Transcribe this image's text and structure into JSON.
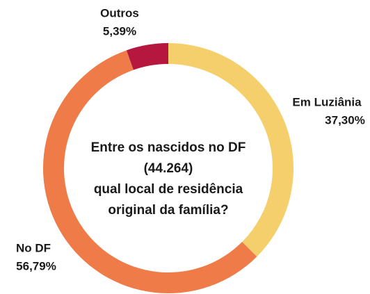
{
  "chart_data": {
    "type": "donut",
    "categories": [
      "Em Luziânia",
      "No DF",
      "Outros"
    ],
    "values": [
      37.3,
      56.79,
      5.39
    ],
    "value_labels": [
      "37,30%",
      "56,79%",
      "5,39%"
    ],
    "colors": [
      "#f4cf6b",
      "#ee7b48",
      "#b5173e"
    ],
    "center_text": [
      "Entre os nascidos no DF",
      "(44.264)",
      "qual local de residência",
      "original da família?"
    ]
  }
}
